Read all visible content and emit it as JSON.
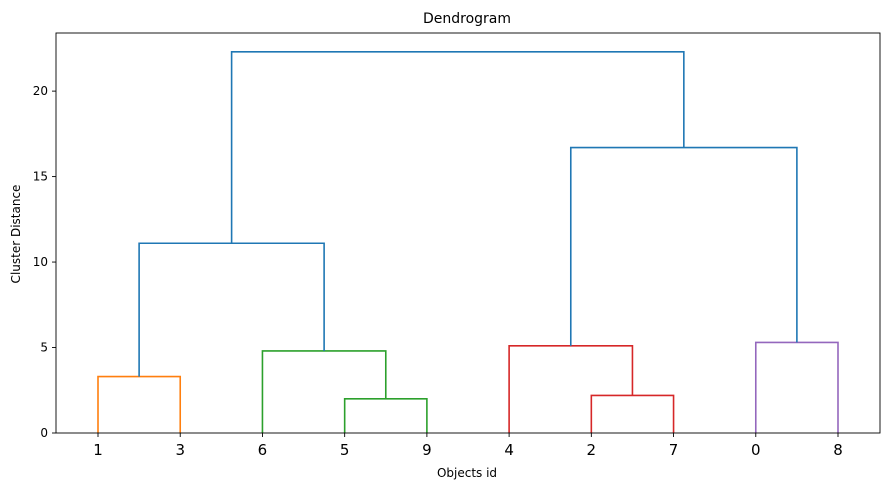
{
  "chart_data": {
    "type": "dendrogram",
    "title": "Dendrogram",
    "xlabel": "Objects id",
    "ylabel": "Cluster Distance",
    "ylim": [
      0,
      23.4
    ],
    "yticks": [
      0,
      5,
      10,
      15,
      20
    ],
    "leaves": [
      "1",
      "3",
      "6",
      "5",
      "9",
      "4",
      "2",
      "7",
      "0",
      "8"
    ],
    "merges": [
      {
        "left": "leaf:0",
        "right": "leaf:1",
        "height": 3.3,
        "color": "#ff7f0e"
      },
      {
        "left": "leaf:3",
        "right": "leaf:4",
        "height": 2.0,
        "color": "#2ca02c"
      },
      {
        "left": "leaf:2",
        "right": "node:1",
        "height": 4.8,
        "color": "#2ca02c"
      },
      {
        "left": "node:0",
        "right": "node:2",
        "height": 11.1,
        "color": "#1f77b4"
      },
      {
        "left": "leaf:6",
        "right": "leaf:7",
        "height": 2.2,
        "color": "#d62728"
      },
      {
        "left": "leaf:5",
        "right": "node:4",
        "height": 5.1,
        "color": "#d62728"
      },
      {
        "left": "leaf:8",
        "right": "leaf:9",
        "height": 5.3,
        "color": "#9467bd"
      },
      {
        "left": "node:5",
        "right": "node:6",
        "height": 16.7,
        "color": "#1f77b4"
      },
      {
        "left": "node:3",
        "right": "node:7",
        "height": 22.3,
        "color": "#1f77b4"
      }
    ],
    "grid": false,
    "legend": "none"
  }
}
